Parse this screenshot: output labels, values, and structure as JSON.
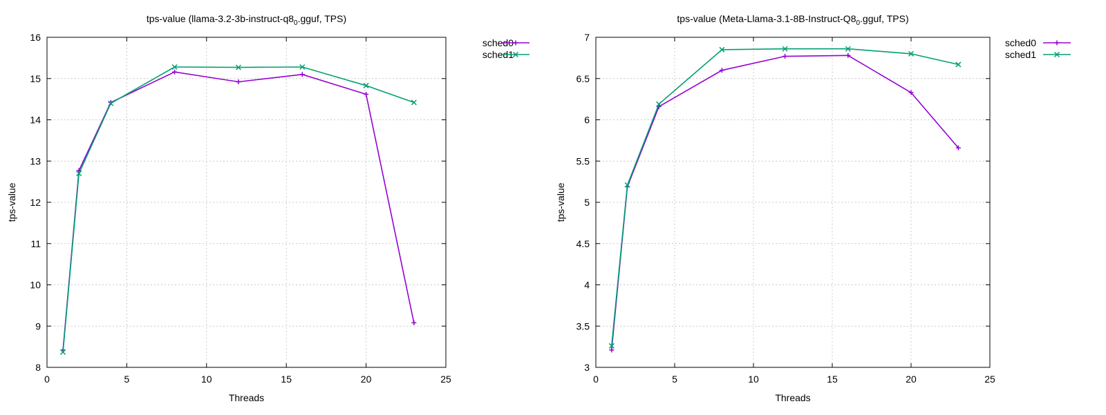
{
  "chart_data": [
    {
      "type": "line",
      "title_prefix": "tps-value (llama-3.2-3b-instruct-q8",
      "title_sub": "0",
      "title_suffix": ".gguf, TPS)",
      "xlabel": "Threads",
      "ylabel": "tps-value",
      "xlim": [
        0,
        25
      ],
      "ylim": [
        8,
        16
      ],
      "xticks": [
        0,
        5,
        10,
        15,
        20,
        25
      ],
      "yticks": [
        8,
        9,
        10,
        11,
        12,
        13,
        14,
        15,
        16
      ],
      "ytick_labels": [
        "8",
        "9",
        "10",
        "11",
        "12",
        "13",
        "14",
        "15",
        "16"
      ],
      "grid": true,
      "legend_position": "top-right outside",
      "series": [
        {
          "name": "sched0",
          "color": "#9400d3",
          "marker": "plus",
          "x": [
            1,
            2,
            4,
            8,
            12,
            16,
            20,
            23
          ],
          "y": [
            8.42,
            12.77,
            14.42,
            15.16,
            14.92,
            15.1,
            14.62,
            9.08
          ]
        },
        {
          "name": "sched1",
          "color": "#009e73",
          "marker": "cross",
          "x": [
            1,
            2,
            4,
            8,
            12,
            16,
            20,
            23
          ],
          "y": [
            8.37,
            12.7,
            14.4,
            15.28,
            15.27,
            15.28,
            14.83,
            14.42
          ]
        }
      ]
    },
    {
      "type": "line",
      "title_prefix": "tps-value (Meta-Llama-3.1-8B-Instruct-Q8",
      "title_sub": "0",
      "title_suffix": ".gguf, TPS)",
      "xlabel": "Threads",
      "ylabel": "tps-value",
      "xlim": [
        0,
        25
      ],
      "ylim": [
        3,
        7
      ],
      "xticks": [
        0,
        5,
        10,
        15,
        20,
        25
      ],
      "yticks": [
        3,
        3.5,
        4,
        4.5,
        5,
        5.5,
        6,
        6.5,
        7
      ],
      "ytick_labels": [
        "3",
        "3.5",
        "4",
        "4.5",
        "5",
        "5.5",
        "6",
        "6.5",
        "7"
      ],
      "grid": true,
      "legend_position": "top-right outside",
      "series": [
        {
          "name": "sched0",
          "color": "#9400d3",
          "marker": "plus",
          "x": [
            1,
            2,
            4,
            8,
            12,
            16,
            20,
            23
          ],
          "y": [
            3.21,
            5.19,
            6.16,
            6.6,
            6.77,
            6.78,
            6.33,
            5.66
          ]
        },
        {
          "name": "sched1",
          "color": "#009e73",
          "marker": "cross",
          "x": [
            1,
            2,
            4,
            8,
            12,
            16,
            20,
            23
          ],
          "y": [
            3.26,
            5.21,
            6.19,
            6.85,
            6.86,
            6.86,
            6.8,
            6.67
          ]
        }
      ]
    }
  ]
}
